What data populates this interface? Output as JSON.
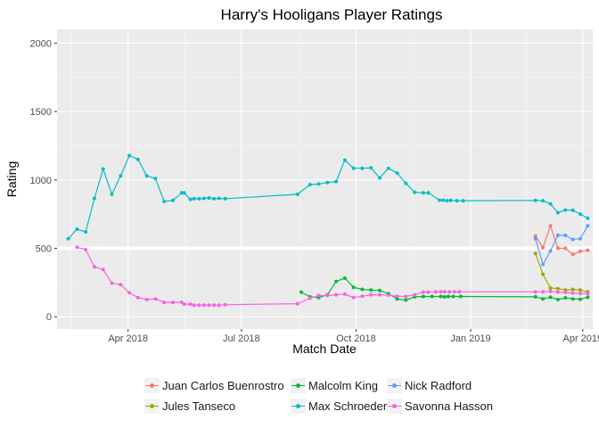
{
  "chart_data": {
    "type": "line",
    "title": "Harry's Hooligans Player Ratings",
    "xlabel": "Match Date",
    "ylabel": "Rating",
    "ylim": [
      -90,
      2100
    ],
    "xlim": [
      "2018-02-03",
      "2019-04-09"
    ],
    "y_ticks": [
      0,
      500,
      1000,
      1500,
      2000
    ],
    "x_ticks": [
      {
        "date": "2018-04-01",
        "label": "Apr 2018"
      },
      {
        "date": "2018-07-01",
        "label": "Jul 2018"
      },
      {
        "date": "2018-10-01",
        "label": "Oct 2018"
      },
      {
        "date": "2019-01-01",
        "label": "Jan 2019"
      },
      {
        "date": "2019-04-01",
        "label": "Apr 2019"
      }
    ],
    "reference_line": 500,
    "grid": true,
    "legend_position": "bottom",
    "series": [
      {
        "name": "Juan Carlos Buenrostro",
        "color": "#F8766D",
        "points": [
          [
            "2019-02-22",
            590
          ],
          [
            "2019-02-28",
            505
          ],
          [
            "2019-03-06",
            665
          ],
          [
            "2019-03-12",
            500
          ],
          [
            "2019-03-18",
            500
          ],
          [
            "2019-03-24",
            455
          ],
          [
            "2019-03-30",
            478
          ],
          [
            "2019-04-05",
            485
          ]
        ]
      },
      {
        "name": "Jules Tanseco",
        "color": "#A3A500",
        "points": [
          [
            "2019-02-22",
            462
          ],
          [
            "2019-02-28",
            310
          ],
          [
            "2019-03-06",
            210
          ],
          [
            "2019-03-12",
            205
          ],
          [
            "2019-03-18",
            195
          ],
          [
            "2019-03-24",
            200
          ],
          [
            "2019-03-30",
            195
          ],
          [
            "2019-04-05",
            182
          ]
        ]
      },
      {
        "name": "Malcolm King",
        "color": "#00BA38",
        "points": [
          [
            "2018-08-18",
            180
          ],
          [
            "2018-08-25",
            145
          ],
          [
            "2018-09-01",
            140
          ],
          [
            "2018-09-08",
            160
          ],
          [
            "2018-09-15",
            258
          ],
          [
            "2018-09-22",
            282
          ],
          [
            "2018-09-29",
            215
          ],
          [
            "2018-10-06",
            200
          ],
          [
            "2018-10-13",
            195
          ],
          [
            "2018-10-20",
            192
          ],
          [
            "2018-10-27",
            168
          ],
          [
            "2018-11-03",
            130
          ],
          [
            "2018-11-10",
            122
          ],
          [
            "2018-11-17",
            145
          ],
          [
            "2018-11-24",
            148
          ],
          [
            "2018-12-01",
            148
          ],
          [
            "2018-12-08",
            148
          ],
          [
            "2018-12-11",
            145
          ],
          [
            "2018-12-14",
            148
          ],
          [
            "2018-12-18",
            148
          ],
          [
            "2018-12-24",
            148
          ],
          [
            "2019-02-22",
            145
          ],
          [
            "2019-02-28",
            130
          ],
          [
            "2019-03-06",
            142
          ],
          [
            "2019-03-12",
            125
          ],
          [
            "2019-03-18",
            138
          ],
          [
            "2019-03-24",
            130
          ],
          [
            "2019-03-30",
            128
          ],
          [
            "2019-04-05",
            142
          ]
        ]
      },
      {
        "name": "Max Schroeder",
        "color": "#00BFC4",
        "points": [
          [
            "2018-02-12",
            570
          ],
          [
            "2018-02-19",
            640
          ],
          [
            "2018-02-26",
            620
          ],
          [
            "2018-03-05",
            865
          ],
          [
            "2018-03-12",
            1080
          ],
          [
            "2018-03-19",
            895
          ],
          [
            "2018-03-26",
            1030
          ],
          [
            "2018-04-02",
            1178
          ],
          [
            "2018-04-09",
            1150
          ],
          [
            "2018-04-16",
            1030
          ],
          [
            "2018-04-23",
            1010
          ],
          [
            "2018-04-30",
            843
          ],
          [
            "2018-05-07",
            850
          ],
          [
            "2018-05-14",
            905
          ],
          [
            "2018-05-16",
            905
          ],
          [
            "2018-05-21",
            858
          ],
          [
            "2018-05-24",
            862
          ],
          [
            "2018-05-28",
            862
          ],
          [
            "2018-06-01",
            865
          ],
          [
            "2018-06-05",
            868
          ],
          [
            "2018-06-09",
            862
          ],
          [
            "2018-06-13",
            865
          ],
          [
            "2018-06-18",
            862
          ],
          [
            "2018-08-15",
            895
          ],
          [
            "2018-08-25",
            965
          ],
          [
            "2018-09-01",
            970
          ],
          [
            "2018-09-08",
            980
          ],
          [
            "2018-09-15",
            988
          ],
          [
            "2018-09-22",
            1145
          ],
          [
            "2018-09-29",
            1085
          ],
          [
            "2018-10-06",
            1085
          ],
          [
            "2018-10-13",
            1088
          ],
          [
            "2018-10-20",
            1015
          ],
          [
            "2018-10-27",
            1085
          ],
          [
            "2018-11-03",
            1050
          ],
          [
            "2018-11-10",
            975
          ],
          [
            "2018-11-17",
            910
          ],
          [
            "2018-11-24",
            905
          ],
          [
            "2018-11-28",
            905
          ],
          [
            "2018-12-07",
            852
          ],
          [
            "2018-12-10",
            852
          ],
          [
            "2018-12-13",
            848
          ],
          [
            "2018-12-16",
            850
          ],
          [
            "2018-12-21",
            848
          ],
          [
            "2018-12-26",
            848
          ],
          [
            "2019-02-22",
            850
          ],
          [
            "2019-02-28",
            848
          ],
          [
            "2019-03-06",
            825
          ],
          [
            "2019-03-12",
            760
          ],
          [
            "2019-03-18",
            780
          ],
          [
            "2019-03-24",
            778
          ],
          [
            "2019-03-30",
            750
          ],
          [
            "2019-04-05",
            720
          ]
        ]
      },
      {
        "name": "Nick Radford",
        "color": "#619CFF",
        "points": [
          [
            "2019-02-22",
            570
          ],
          [
            "2019-02-28",
            382
          ],
          [
            "2019-03-06",
            480
          ],
          [
            "2019-03-12",
            595
          ],
          [
            "2019-03-18",
            595
          ],
          [
            "2019-03-24",
            565
          ],
          [
            "2019-03-30",
            570
          ],
          [
            "2019-04-05",
            665
          ]
        ]
      },
      {
        "name": "Savonna Hasson",
        "color": "#F564E3",
        "points": [
          [
            "2018-02-19",
            508
          ],
          [
            "2018-02-26",
            490
          ],
          [
            "2018-03-05",
            365
          ],
          [
            "2018-03-12",
            345
          ],
          [
            "2018-03-19",
            245
          ],
          [
            "2018-03-26",
            235
          ],
          [
            "2018-04-02",
            175
          ],
          [
            "2018-04-09",
            140
          ],
          [
            "2018-04-16",
            125
          ],
          [
            "2018-04-23",
            130
          ],
          [
            "2018-04-30",
            105
          ],
          [
            "2018-05-07",
            105
          ],
          [
            "2018-05-14",
            105
          ],
          [
            "2018-05-16",
            92
          ],
          [
            "2018-05-21",
            92
          ],
          [
            "2018-05-24",
            85
          ],
          [
            "2018-05-28",
            85
          ],
          [
            "2018-06-01",
            85
          ],
          [
            "2018-06-05",
            85
          ],
          [
            "2018-06-09",
            85
          ],
          [
            "2018-06-13",
            85
          ],
          [
            "2018-06-18",
            88
          ],
          [
            "2018-08-15",
            95
          ],
          [
            "2018-08-25",
            135
          ],
          [
            "2018-09-01",
            155
          ],
          [
            "2018-09-08",
            155
          ],
          [
            "2018-09-15",
            160
          ],
          [
            "2018-09-22",
            165
          ],
          [
            "2018-09-29",
            140
          ],
          [
            "2018-10-06",
            150
          ],
          [
            "2018-10-13",
            160
          ],
          [
            "2018-10-20",
            160
          ],
          [
            "2018-10-27",
            158
          ],
          [
            "2018-11-03",
            150
          ],
          [
            "2018-11-10",
            148
          ],
          [
            "2018-11-17",
            160
          ],
          [
            "2018-11-24",
            180
          ],
          [
            "2018-11-28",
            180
          ],
          [
            "2018-12-04",
            182
          ],
          [
            "2018-12-08",
            182
          ],
          [
            "2018-12-11",
            182
          ],
          [
            "2018-12-15",
            182
          ],
          [
            "2018-12-19",
            182
          ],
          [
            "2018-12-23",
            182
          ],
          [
            "2019-02-22",
            182
          ],
          [
            "2019-02-28",
            182
          ],
          [
            "2019-03-06",
            185
          ],
          [
            "2019-03-12",
            180
          ],
          [
            "2019-03-18",
            178
          ],
          [
            "2019-03-24",
            172
          ],
          [
            "2019-03-30",
            170
          ],
          [
            "2019-04-05",
            170
          ]
        ]
      }
    ]
  }
}
